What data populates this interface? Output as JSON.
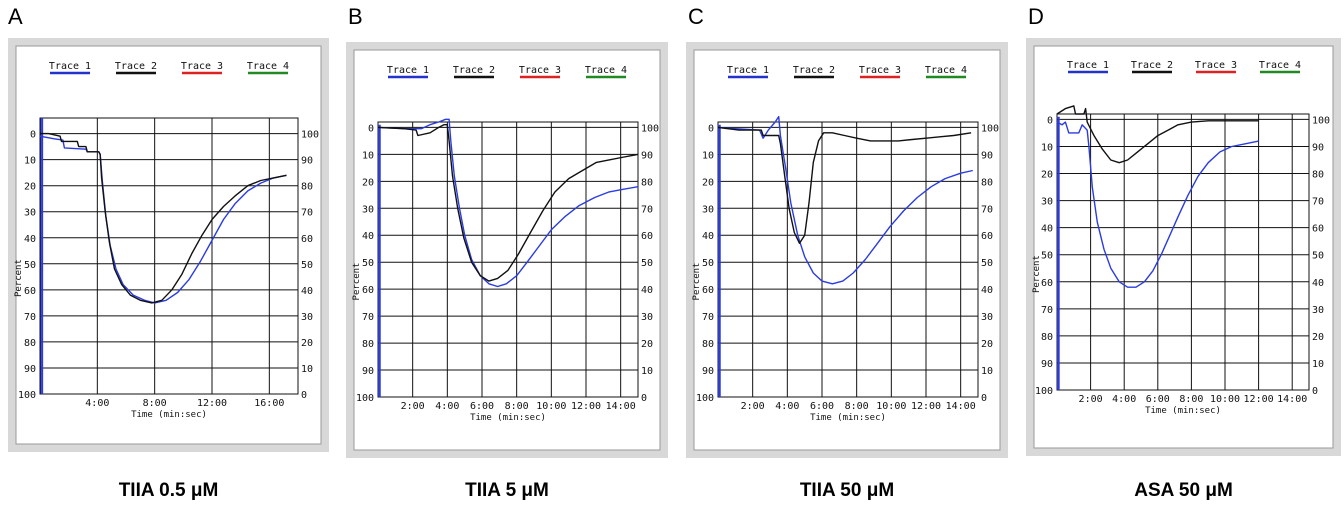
{
  "chart_data": [
    {
      "type": "line",
      "panel": "A",
      "caption": "TIIA 0.5 μM",
      "legend": [
        "Trace 1",
        "Trace 2",
        "Trace 3",
        "Trace 4"
      ],
      "legend_colors": [
        "#2233cc",
        "#111111",
        "#dd2222",
        "#228822"
      ],
      "xlabel": "Time (min:sec)",
      "ylabel": "Percent",
      "xlim": [
        0,
        18
      ],
      "x_ticks": [
        {
          "v": 4,
          "label": "4:00"
        },
        {
          "v": 8,
          "label": "8:00"
        },
        {
          "v": 12,
          "label": "12:00"
        },
        {
          "v": 16,
          "label": "16:00"
        }
      ],
      "left_ticks": [
        "0",
        "10",
        "20",
        "30",
        "40",
        "50",
        "60",
        "70",
        "80",
        "90",
        "100"
      ],
      "right_ticks": [
        "100",
        "90",
        "80",
        "70",
        "60",
        "50",
        "40",
        "30",
        "20",
        "10",
        "0"
      ],
      "series": [
        {
          "name": "Trace 1",
          "color": "#2a3ce0",
          "points": [
            [
              0,
              1
            ],
            [
              1,
              2
            ],
            [
              1.6,
              2.5
            ],
            [
              1.7,
              5.5
            ],
            [
              3.2,
              6
            ],
            [
              3.3,
              7
            ],
            [
              4.1,
              7
            ],
            [
              4.2,
              8
            ],
            [
              4.35,
              18
            ],
            [
              4.6,
              32
            ],
            [
              4.9,
              43
            ],
            [
              5.3,
              52
            ],
            [
              5.8,
              58
            ],
            [
              6.5,
              62
            ],
            [
              7.3,
              64
            ],
            [
              8,
              65
            ],
            [
              8.8,
              64
            ],
            [
              9.6,
              61
            ],
            [
              10.4,
              56
            ],
            [
              11.2,
              49
            ],
            [
              12,
              41
            ],
            [
              12.8,
              33
            ],
            [
              13.6,
              27
            ],
            [
              14.5,
              22
            ],
            [
              15.4,
              19
            ],
            [
              16.3,
              17
            ],
            [
              17.2,
              16
            ]
          ]
        },
        {
          "name": "Trace 2",
          "color": "#111111",
          "points": [
            [
              0,
              0
            ],
            [
              0.6,
              0
            ],
            [
              1.4,
              1
            ],
            [
              1.5,
              3
            ],
            [
              2.6,
              3
            ],
            [
              2.7,
              5
            ],
            [
              3.2,
              5
            ],
            [
              3.3,
              7
            ],
            [
              4.1,
              7
            ],
            [
              4.2,
              8
            ],
            [
              4.3,
              17
            ],
            [
              4.55,
              30
            ],
            [
              4.85,
              42
            ],
            [
              5.2,
              52
            ],
            [
              5.7,
              58
            ],
            [
              6.3,
              62
            ],
            [
              7,
              64
            ],
            [
              7.8,
              65
            ],
            [
              8.5,
              64
            ],
            [
              9.2,
              60
            ],
            [
              9.9,
              54
            ],
            [
              10.6,
              46
            ],
            [
              11.3,
              39
            ],
            [
              12,
              33
            ],
            [
              12.8,
              28
            ],
            [
              13.6,
              24
            ],
            [
              14.5,
              20
            ],
            [
              15.4,
              18
            ],
            [
              16.3,
              17
            ],
            [
              17.2,
              16
            ]
          ]
        }
      ],
      "spike": {
        "x": 0.15,
        "y1": 100,
        "y2": -6
      }
    },
    {
      "type": "line",
      "panel": "B",
      "caption": "TIIA 5 μM",
      "legend": [
        "Trace 1",
        "Trace 2",
        "Trace 3",
        "Trace 4"
      ],
      "legend_colors": [
        "#2233cc",
        "#111111",
        "#dd2222",
        "#228822"
      ],
      "xlabel": "Time (min:sec)",
      "ylabel": "Percent",
      "xlim": [
        0,
        15
      ],
      "x_ticks": [
        {
          "v": 2,
          "label": "2:00"
        },
        {
          "v": 4,
          "label": "4:00"
        },
        {
          "v": 6,
          "label": "6:00"
        },
        {
          "v": 8,
          "label": "8:00"
        },
        {
          "v": 10,
          "label": "10:00"
        },
        {
          "v": 12,
          "label": "12:00"
        },
        {
          "v": 14,
          "label": "14:00"
        }
      ],
      "left_ticks": [
        "0",
        "10",
        "20",
        "30",
        "40",
        "50",
        "60",
        "70",
        "80",
        "90",
        "100"
      ],
      "right_ticks": [
        "100",
        "90",
        "80",
        "70",
        "60",
        "50",
        "40",
        "30",
        "20",
        "10",
        "0"
      ],
      "series": [
        {
          "name": "Trace 1",
          "color": "#2a3ce0",
          "points": [
            [
              0,
              0
            ],
            [
              1.5,
              0.5
            ],
            [
              2.5,
              0.5
            ],
            [
              3,
              -1
            ],
            [
              3.5,
              -2
            ],
            [
              3.9,
              -3
            ],
            [
              4.1,
              -3
            ],
            [
              4.2,
              5
            ],
            [
              4.4,
              18
            ],
            [
              4.7,
              30
            ],
            [
              5,
              40
            ],
            [
              5.4,
              49
            ],
            [
              5.9,
              55
            ],
            [
              6.4,
              58
            ],
            [
              6.9,
              59
            ],
            [
              7.4,
              58
            ],
            [
              8,
              55
            ],
            [
              8.6,
              50
            ],
            [
              9.3,
              44
            ],
            [
              10,
              38
            ],
            [
              10.8,
              33
            ],
            [
              11.6,
              29
            ],
            [
              12.5,
              26
            ],
            [
              13.3,
              24
            ],
            [
              14.1,
              23
            ],
            [
              15,
              22
            ]
          ]
        },
        {
          "name": "Trace 2",
          "color": "#111111",
          "points": [
            [
              0,
              0
            ],
            [
              1.5,
              0.5
            ],
            [
              2.2,
              1
            ],
            [
              2.3,
              3
            ],
            [
              3,
              2
            ],
            [
              3.5,
              0
            ],
            [
              3.8,
              -1
            ],
            [
              4,
              -1
            ],
            [
              4.1,
              5
            ],
            [
              4.3,
              18
            ],
            [
              4.6,
              30
            ],
            [
              4.95,
              41
            ],
            [
              5.4,
              50
            ],
            [
              5.9,
              55
            ],
            [
              6.4,
              57
            ],
            [
              6.9,
              56
            ],
            [
              7.5,
              53
            ],
            [
              8.1,
              47
            ],
            [
              8.8,
              39
            ],
            [
              9.5,
              31
            ],
            [
              10.2,
              24
            ],
            [
              11,
              19
            ],
            [
              11.8,
              16
            ],
            [
              12.6,
              13
            ],
            [
              13.4,
              12
            ],
            [
              14.2,
              11
            ],
            [
              15,
              10
            ]
          ]
        }
      ],
      "spike": {
        "x": 0.1,
        "y1": 100,
        "y2": -1
      }
    },
    {
      "type": "line",
      "panel": "C",
      "caption": "TIIA 50 μM",
      "legend": [
        "Trace 1",
        "Trace 2",
        "Trace 3",
        "Trace 4"
      ],
      "legend_colors": [
        "#2233cc",
        "#111111",
        "#dd2222",
        "#228822"
      ],
      "xlabel": "Time (min:sec)",
      "ylabel": "Percent",
      "xlim": [
        0,
        15
      ],
      "x_ticks": [
        {
          "v": 2,
          "label": "2:00"
        },
        {
          "v": 4,
          "label": "4:00"
        },
        {
          "v": 6,
          "label": "6:00"
        },
        {
          "v": 8,
          "label": "8:00"
        },
        {
          "v": 10,
          "label": "10:00"
        },
        {
          "v": 12,
          "label": "12:00"
        },
        {
          "v": 14,
          "label": "14:00"
        }
      ],
      "left_ticks": [
        "0",
        "10",
        "20",
        "30",
        "40",
        "50",
        "60",
        "70",
        "80",
        "90",
        "100"
      ],
      "right_ticks": [
        "100",
        "90",
        "80",
        "70",
        "60",
        "50",
        "40",
        "30",
        "20",
        "10",
        "0"
      ],
      "series": [
        {
          "name": "Trace 1",
          "color": "#2a3ce0",
          "points": [
            [
              0,
              0
            ],
            [
              1,
              0.5
            ],
            [
              2.4,
              1
            ],
            [
              2.6,
              4
            ],
            [
              2.9,
              1
            ],
            [
              3.3,
              -2
            ],
            [
              3.5,
              -4
            ],
            [
              3.6,
              3
            ],
            [
              3.9,
              15
            ],
            [
              4.2,
              28
            ],
            [
              4.6,
              40
            ],
            [
              5,
              48
            ],
            [
              5.5,
              54
            ],
            [
              6,
              57
            ],
            [
              6.6,
              58
            ],
            [
              7.2,
              57
            ],
            [
              7.8,
              54
            ],
            [
              8.5,
              49
            ],
            [
              9.2,
              43
            ],
            [
              9.9,
              37
            ],
            [
              10.7,
              31
            ],
            [
              11.5,
              26
            ],
            [
              12.3,
              22
            ],
            [
              13.1,
              19
            ],
            [
              14,
              17
            ],
            [
              14.7,
              16
            ]
          ]
        },
        {
          "name": "Trace 2",
          "color": "#111111",
          "points": [
            [
              0,
              0
            ],
            [
              1.2,
              1
            ],
            [
              2.5,
              1
            ],
            [
              2.6,
              3
            ],
            [
              3.5,
              3
            ],
            [
              3.6,
              6
            ],
            [
              3.85,
              18
            ],
            [
              4.1,
              30
            ],
            [
              4.4,
              39
            ],
            [
              4.7,
              43
            ],
            [
              5,
              40
            ],
            [
              5.25,
              28
            ],
            [
              5.5,
              13
            ],
            [
              5.8,
              5
            ],
            [
              6.1,
              2
            ],
            [
              6.6,
              2
            ],
            [
              7.3,
              3
            ],
            [
              8,
              4
            ],
            [
              8.8,
              5
            ],
            [
              9.6,
              5
            ],
            [
              10.4,
              5
            ],
            [
              11.2,
              4.5
            ],
            [
              12,
              4
            ],
            [
              12.8,
              3.5
            ],
            [
              13.6,
              3
            ],
            [
              14.6,
              2
            ]
          ]
        }
      ],
      "spike": {
        "x": 0.1,
        "y1": 100,
        "y2": -1
      }
    },
    {
      "type": "line",
      "panel": "D",
      "caption": "ASA 50 μM",
      "legend": [
        "Trace 1",
        "Trace 2",
        "Trace 3",
        "Trace 4"
      ],
      "legend_colors": [
        "#2233cc",
        "#111111",
        "#dd2222",
        "#228822"
      ],
      "xlabel": "Time (min:sec)",
      "ylabel": "Percent",
      "xlim": [
        0,
        15
      ],
      "x_ticks": [
        {
          "v": 2,
          "label": "2:00"
        },
        {
          "v": 4,
          "label": "4:00"
        },
        {
          "v": 6,
          "label": "6:00"
        },
        {
          "v": 8,
          "label": "8:00"
        },
        {
          "v": 10,
          "label": "10:00"
        },
        {
          "v": 12,
          "label": "12:00"
        },
        {
          "v": 14,
          "label": "14:00"
        }
      ],
      "left_ticks": [
        "0",
        "10",
        "20",
        "30",
        "40",
        "50",
        "60",
        "70",
        "80",
        "90",
        "100"
      ],
      "right_ticks": [
        "100",
        "90",
        "80",
        "70",
        "60",
        "50",
        "40",
        "30",
        "20",
        "10",
        "0"
      ],
      "series": [
        {
          "name": "Trace 1",
          "color": "#2a3ce0",
          "points": [
            [
              0,
              1
            ],
            [
              0.3,
              2
            ],
            [
              0.5,
              1
            ],
            [
              0.7,
              5
            ],
            [
              1.3,
              5
            ],
            [
              1.5,
              2
            ],
            [
              1.8,
              4
            ],
            [
              1.9,
              10
            ],
            [
              2.1,
              25
            ],
            [
              2.4,
              38
            ],
            [
              2.8,
              48
            ],
            [
              3.2,
              55
            ],
            [
              3.7,
              60
            ],
            [
              4.2,
              62
            ],
            [
              4.7,
              62
            ],
            [
              5.2,
              60
            ],
            [
              5.7,
              56
            ],
            [
              6.2,
              50
            ],
            [
              6.7,
              43
            ],
            [
              7.2,
              36
            ],
            [
              7.8,
              28
            ],
            [
              8.4,
              21
            ],
            [
              9,
              16
            ],
            [
              9.7,
              12
            ],
            [
              10.4,
              10
            ],
            [
              11.2,
              9
            ],
            [
              12,
              8
            ]
          ]
        },
        {
          "name": "Trace 2",
          "color": "#111111",
          "points": [
            [
              0,
              -2
            ],
            [
              0.5,
              -4
            ],
            [
              1,
              -5
            ],
            [
              1.1,
              -2
            ],
            [
              1.6,
              -2
            ],
            [
              1.7,
              -4
            ],
            [
              1.8,
              1
            ],
            [
              2.2,
              6
            ],
            [
              2.7,
              11
            ],
            [
              3.2,
              15
            ],
            [
              3.7,
              16
            ],
            [
              4.2,
              15
            ],
            [
              4.8,
              12
            ],
            [
              5.4,
              9
            ],
            [
              6,
              6
            ],
            [
              6.6,
              4
            ],
            [
              7.2,
              2
            ],
            [
              8,
              1
            ],
            [
              9,
              0.5
            ],
            [
              10,
              0.5
            ],
            [
              11,
              0.5
            ],
            [
              12,
              0.5
            ]
          ]
        }
      ],
      "spike": {
        "x": 0.1,
        "y1": 100,
        "y2": -1
      }
    }
  ]
}
